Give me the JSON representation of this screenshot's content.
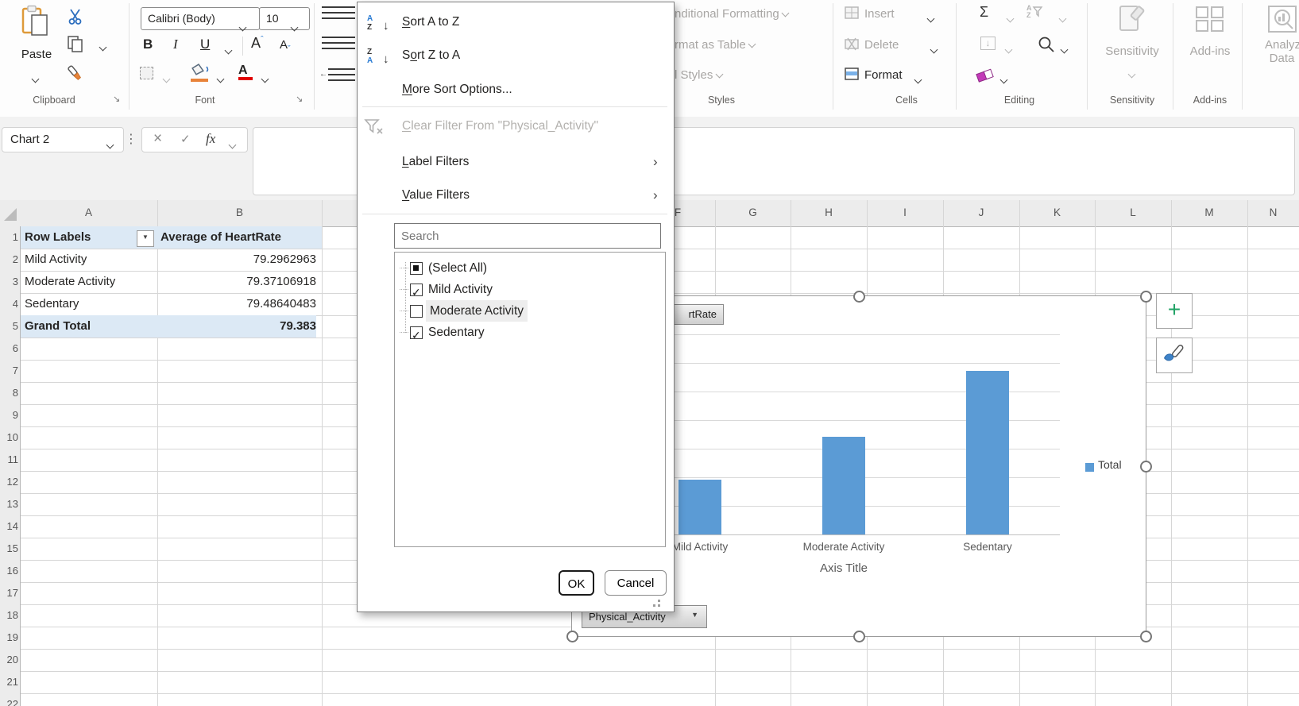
{
  "ribbon": {
    "clipboard": {
      "paste": "Paste",
      "label": "Clipboard"
    },
    "font": {
      "font_name": "Calibri (Body)",
      "font_size": "10",
      "bold": "B",
      "italic": "I",
      "underline": "U",
      "grow": "A",
      "shrink": "A",
      "color_a": "A",
      "label": "Font"
    },
    "styles": {
      "conditional": "nditional Formatting",
      "format_table": "rmat as Table",
      "cell_styles": "l Styles",
      "label": "Styles"
    },
    "cells": {
      "insert": "Insert",
      "delete": "Delete",
      "format": "Format",
      "label": "Cells"
    },
    "editing": {
      "sum": "Σ",
      "label": "Editing"
    },
    "sensitivity": {
      "button": "Sensitivity",
      "label": "Sensitivity"
    },
    "addins": {
      "button": "Add-ins",
      "label": "Add-ins"
    },
    "analyze": {
      "line1": "Analyze",
      "line2": "Data"
    }
  },
  "formula_bar": {
    "name_box": "Chart 2",
    "cancel": "×",
    "enter": "✓",
    "fx": "fx"
  },
  "filter_menu": {
    "sort_az": "Sort A to Z",
    "sort_za": "Sort Z to A",
    "more_sort": "More Sort Options...",
    "clear_filter": "Clear Filter From \"Physical_Activity\"",
    "label_filters": "Label Filters",
    "value_filters": "Value Filters",
    "search_placeholder": "Search",
    "items": [
      {
        "label": "(Select All)",
        "state": "indeterminate"
      },
      {
        "label": "Mild Activity",
        "state": "checked"
      },
      {
        "label": "Moderate Activity",
        "state": "unchecked",
        "hover": true
      },
      {
        "label": "Sedentary",
        "state": "checked"
      }
    ],
    "ok": "OK",
    "cancel": "Cancel"
  },
  "sheet": {
    "col_letters": [
      "A",
      "B",
      "F",
      "G",
      "H",
      "I",
      "J",
      "K",
      "L",
      "M",
      "N"
    ],
    "row_numbers": [
      "1",
      "2",
      "3",
      "4",
      "5",
      "6",
      "7",
      "8",
      "9",
      "10",
      "11",
      "12",
      "13",
      "14",
      "15",
      "16",
      "17",
      "18",
      "19",
      "20",
      "21",
      "22"
    ],
    "pivot": {
      "headers": [
        "Row Labels",
        "Average of HeartRate"
      ],
      "rows": [
        [
          "Mild Activity",
          "79.2962963"
        ],
        [
          "Moderate Activity",
          "79.37106918"
        ],
        [
          "Sedentary",
          "79.48640483"
        ]
      ],
      "total": [
        "Grand Total",
        "79.383"
      ]
    }
  },
  "chart": {
    "value_button": "rtRate",
    "field_button": "Physical_Activity",
    "accent": "#5B9BD5",
    "plus_button": "+"
  },
  "chart_data": {
    "type": "bar",
    "categories": [
      "Mild Activity",
      "Moderate Activity",
      "Sedentary"
    ],
    "series": [
      {
        "name": "Total",
        "values": [
          79.2962963,
          79.37106918,
          79.48640483
        ]
      }
    ],
    "title": "",
    "xlabel": "Axis Title",
    "ylabel": "",
    "ylim": [
      79.2,
      79.55
    ],
    "grid": true,
    "legend_position": "right"
  }
}
